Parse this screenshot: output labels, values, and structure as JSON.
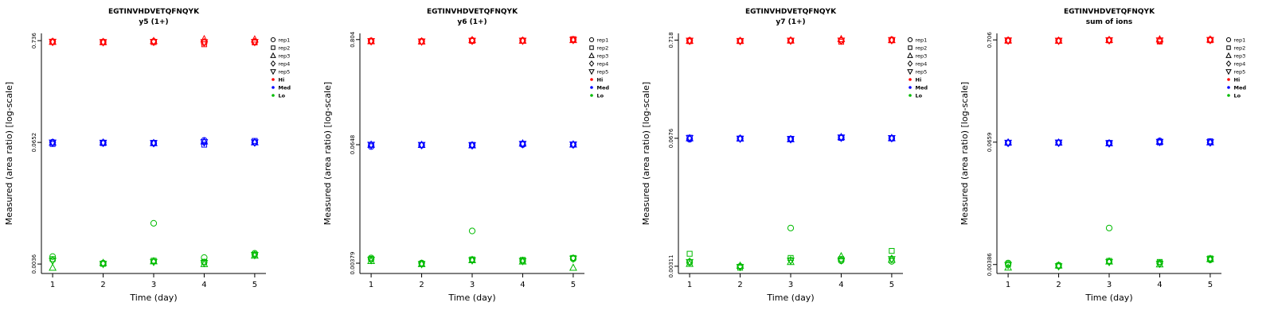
{
  "figure": {
    "y_axis_label": "Measured (area ratio) [log-scale]",
    "x_axis_label": "Time (day)",
    "reps": [
      {
        "label": "rep1",
        "symbol": "circle"
      },
      {
        "label": "rep2",
        "symbol": "square"
      },
      {
        "label": "rep3",
        "symbol": "triangle-up"
      },
      {
        "label": "rep4",
        "symbol": "diamond"
      },
      {
        "label": "rep5",
        "symbol": "triangle-down"
      }
    ],
    "levels_legend": [
      {
        "label": "Hi",
        "color": "#FF0000"
      },
      {
        "label": "Med",
        "color": "#0000FF"
      },
      {
        "label": "Lo",
        "color": "#00BB00"
      }
    ],
    "colors": {
      "hi": "#FF0000",
      "med": "#0000FF",
      "lo": "#00BB00",
      "axis": "#000000"
    }
  },
  "chart_data": [
    {
      "type": "scatter",
      "title": "EGTINVHDVETQFNQYK",
      "subtitle": "y5 (1+)",
      "xlabel": "Time (day)",
      "ylabel": "Measured (area ratio) [log-scale]",
      "y_scale": "log",
      "x_range": [
        1,
        5
      ],
      "x": [
        1,
        2,
        3,
        4,
        5
      ],
      "y_ticks": [
        {
          "value": 0.736,
          "label": "0.736"
        },
        {
          "value": 0.0652,
          "label": "0.0652"
        },
        {
          "value": 0.0036,
          "label": "0.0036"
        }
      ],
      "levels": [
        {
          "name": "Hi",
          "color": "#FF0000",
          "reps": [
            [
              0.72,
              0.715,
              0.722,
              0.7,
              0.718
            ],
            [
              0.712,
              0.708,
              0.71,
              0.675,
              0.705
            ],
            [
              0.718,
              0.712,
              0.73,
              0.762,
              0.758
            ],
            [
              0.715,
              0.71,
              0.716,
              0.712,
              0.714
            ],
            [
              0.714,
              0.709,
              0.713,
              0.708,
              0.711
            ]
          ]
        },
        {
          "name": "Med",
          "color": "#0000FF",
          "reps": [
            [
              0.0655,
              0.0648,
              0.0638,
              0.0684,
              0.0652
            ],
            [
              0.0628,
              0.0641,
              0.0645,
              0.0618,
              0.0676
            ],
            [
              0.065,
              0.0649,
              0.0642,
              0.0668,
              0.0655
            ],
            [
              0.0646,
              0.0645,
              0.064,
              0.0652,
              0.065
            ],
            [
              0.0649,
              0.0646,
              0.0641,
              0.0655,
              0.0651
            ]
          ]
        },
        {
          "name": "Lo",
          "color": "#00BB00",
          "reps": [
            [
              0.0043,
              0.00368,
              0.0095,
              0.0042,
              0.00465
            ],
            [
              0.00405,
              0.00362,
              0.0039,
              0.0038,
              0.00452
            ],
            [
              0.0033,
              0.0037,
              0.00385,
              0.0036,
              0.0044
            ],
            [
              0.00395,
              0.00364,
              0.00382,
              0.00372,
              0.00448
            ],
            [
              0.00388,
              0.0036,
              0.00378,
              0.00368,
              0.00445
            ]
          ]
        }
      ]
    },
    {
      "type": "scatter",
      "title": "EGTINVHDVETQFNQYK",
      "subtitle": "y6 (1+)",
      "xlabel": "Time (day)",
      "ylabel": "Measured (area ratio) [log-scale]",
      "y_scale": "log",
      "x_range": [
        1,
        5
      ],
      "x": [
        1,
        2,
        3,
        4,
        5
      ],
      "y_ticks": [
        {
          "value": 0.804,
          "label": "0.804"
        },
        {
          "value": 0.0648,
          "label": "0.0648"
        },
        {
          "value": 0.00379,
          "label": "0.00379"
        }
      ],
      "levels": [
        {
          "name": "Hi",
          "color": "#FF0000",
          "reps": [
            [
              0.78,
              0.772,
              0.79,
              0.788,
              0.8
            ],
            [
              0.77,
              0.765,
              0.778,
              0.78,
              0.812
            ],
            [
              0.775,
              0.77,
              0.795,
              0.785,
              0.795
            ],
            [
              0.772,
              0.768,
              0.782,
              0.783,
              0.798
            ],
            [
              0.774,
              0.766,
              0.78,
              0.781,
              0.796
            ]
          ]
        },
        {
          "name": "Med",
          "color": "#0000FF",
          "reps": [
            [
              0.062,
              0.064,
              0.0638,
              0.065,
              0.0648
            ],
            [
              0.0645,
              0.0642,
              0.0645,
              0.0662,
              0.065
            ],
            [
              0.0648,
              0.0645,
              0.064,
              0.0668,
              0.0652
            ],
            [
              0.0643,
              0.0641,
              0.0637,
              0.0655,
              0.0649
            ],
            [
              0.0646,
              0.0643,
              0.0639,
              0.0658,
              0.0651
            ]
          ]
        },
        {
          "name": "Lo",
          "color": "#00BB00",
          "reps": [
            [
              0.0043,
              0.0038,
              0.0082,
              0.004,
              0.0042
            ],
            [
              0.0042,
              0.00375,
              0.00415,
              0.0041,
              0.0043
            ],
            [
              0.004,
              0.00372,
              0.00408,
              0.00395,
              0.0034
            ],
            [
              0.00412,
              0.00374,
              0.0041,
              0.00402,
              0.00425
            ],
            [
              0.00408,
              0.0037,
              0.00405,
              0.00398,
              0.00422
            ]
          ]
        }
      ]
    },
    {
      "type": "scatter",
      "title": "EGTINVHDVETQFNQYK",
      "subtitle": "y7 (1+)",
      "xlabel": "Time (day)",
      "ylabel": "Measured (area ratio) [log-scale]",
      "y_scale": "log",
      "x_range": [
        1,
        5
      ],
      "x": [
        1,
        2,
        3,
        4,
        5
      ],
      "y_ticks": [
        {
          "value": 0.718,
          "label": "0.718"
        },
        {
          "value": 0.0676,
          "label": "0.0676"
        },
        {
          "value": 0.00311,
          "label": "0.00311"
        }
      ],
      "levels": [
        {
          "name": "Hi",
          "color": "#FF0000",
          "reps": [
            [
              0.712,
              0.705,
              0.71,
              0.712,
              0.725
            ],
            [
              0.7,
              0.702,
              0.708,
              0.69,
              0.715
            ],
            [
              0.708,
              0.706,
              0.712,
              0.735,
              0.72
            ],
            [
              0.705,
              0.703,
              0.709,
              0.71,
              0.718
            ],
            [
              0.706,
              0.701,
              0.707,
              0.708,
              0.716
            ]
          ]
        },
        {
          "name": "Med",
          "color": "#0000FF",
          "reps": [
            [
              0.066,
              0.0672,
              0.0665,
              0.069,
              0.0676
            ],
            [
              0.0685,
              0.067,
              0.0668,
              0.0682,
              0.0674
            ],
            [
              0.0678,
              0.0673,
              0.0662,
              0.0695,
              0.068
            ],
            [
              0.0675,
              0.0671,
              0.066,
              0.0685,
              0.0677
            ],
            [
              0.068,
              0.0669,
              0.0663,
              0.0688,
              0.0678
            ]
          ]
        },
        {
          "name": "Lo",
          "color": "#00BB00",
          "reps": [
            [
              0.0034,
              0.0031,
              0.0078,
              0.00355,
              0.0035
            ],
            [
              0.0042,
              0.003,
              0.0038,
              0.0037,
              0.0045
            ],
            [
              0.0033,
              0.00315,
              0.00345,
              0.00395,
              0.00365
            ],
            [
              0.00348,
              0.00308,
              0.0036,
              0.00362,
              0.00372
            ],
            [
              0.00344,
              0.00305,
              0.00355,
              0.00358,
              0.00368
            ]
          ]
        }
      ]
    },
    {
      "type": "scatter",
      "title": "EGTINVHDVETQFNQYK",
      "subtitle": "sum of ions",
      "xlabel": "Time (day)",
      "ylabel": "Measured (area ratio) [log-scale]",
      "y_scale": "log",
      "x_range": [
        1,
        5
      ],
      "x": [
        1,
        2,
        3,
        4,
        5
      ],
      "y_ticks": [
        {
          "value": 0.706,
          "label": "0.706"
        },
        {
          "value": 0.0659,
          "label": "0.0659"
        },
        {
          "value": 0.00386,
          "label": "0.00386"
        }
      ],
      "levels": [
        {
          "name": "Hi",
          "color": "#FF0000",
          "reps": [
            [
              0.7,
              0.695,
              0.702,
              0.69,
              0.71
            ],
            [
              0.692,
              0.69,
              0.698,
              0.68,
              0.7
            ],
            [
              0.698,
              0.694,
              0.705,
              0.715,
              0.712
            ],
            [
              0.695,
              0.692,
              0.7,
              0.698,
              0.705
            ],
            [
              0.696,
              0.691,
              0.699,
              0.696,
              0.703
            ]
          ]
        },
        {
          "name": "Med",
          "color": "#0000FF",
          "reps": [
            [
              0.065,
              0.0652,
              0.0645,
              0.0678,
              0.0655
            ],
            [
              0.0648,
              0.065,
              0.0648,
              0.0655,
              0.0672
            ],
            [
              0.0655,
              0.0653,
              0.0642,
              0.0668,
              0.0658
            ],
            [
              0.0646,
              0.0649,
              0.064,
              0.066,
              0.0653
            ],
            [
              0.0649,
              0.0651,
              0.0643,
              0.0662,
              0.0656
            ]
          ]
        },
        {
          "name": "Lo",
          "color": "#00BB00",
          "reps": [
            [
              0.004,
              0.0038,
              0.009,
              0.004,
              0.0043
            ],
            [
              0.0039,
              0.00375,
              0.0042,
              0.0041,
              0.00445
            ],
            [
              0.0036,
              0.00378,
              0.00415,
              0.00388,
              0.00438
            ],
            [
              0.00385,
              0.00372,
              0.00412,
              0.00395,
              0.0044
            ],
            [
              0.0038,
              0.0037,
              0.00408,
              0.00392,
              0.00436
            ]
          ]
        }
      ]
    }
  ]
}
